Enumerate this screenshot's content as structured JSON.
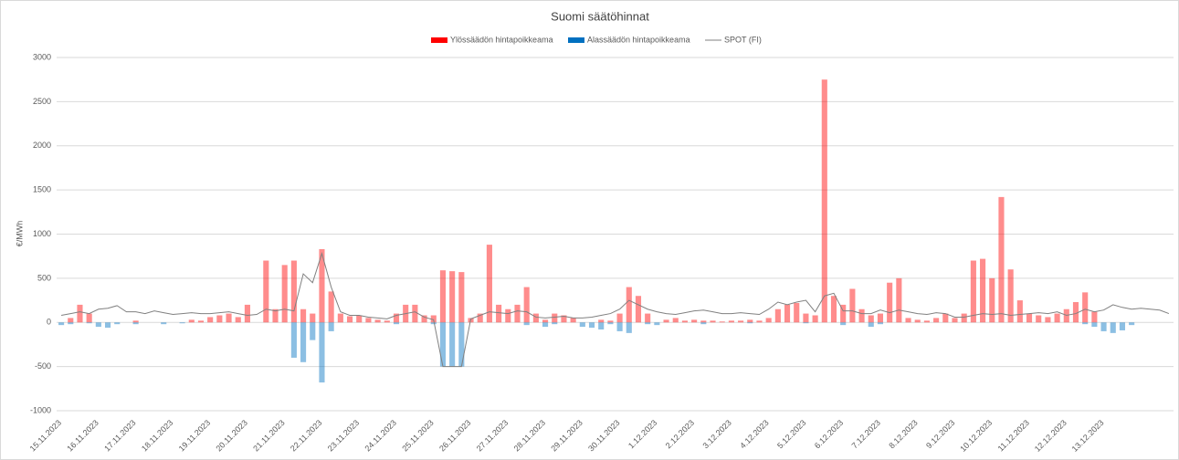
{
  "chart_data": {
    "type": "bar",
    "title": "Suomi säätöhinnat",
    "y_label": "€/MWh",
    "categories": [
      "15.11.2023",
      null,
      null,
      null,
      "16.11.2023",
      null,
      null,
      null,
      "17.11.2023",
      null,
      null,
      null,
      "18.11.2023",
      null,
      null,
      null,
      "19.11.2023",
      null,
      null,
      null,
      "20.11.2023",
      null,
      null,
      null,
      "21.11.2023",
      null,
      null,
      null,
      "22.11.2023",
      null,
      null,
      null,
      "23.11.2023",
      null,
      null,
      null,
      "24.11.2023",
      null,
      null,
      null,
      "25.11.2023",
      null,
      null,
      null,
      "26.11.2023",
      null,
      null,
      null,
      "27.11.2023",
      null,
      null,
      null,
      "28.11.2023",
      null,
      null,
      null,
      "29.11.2023",
      null,
      null,
      null,
      "30.11.2023",
      null,
      null,
      null,
      "1.12.2023",
      null,
      null,
      null,
      "2.12.2023",
      null,
      null,
      null,
      "3.12.2023",
      null,
      null,
      null,
      "4.12.2023",
      null,
      null,
      null,
      "5.12.2023",
      null,
      null,
      null,
      "6.12.2023",
      null,
      null,
      null,
      "7.12.2023",
      null,
      null,
      null,
      "8.12.2023",
      null,
      null,
      null,
      "9.12.2023",
      null,
      null,
      null,
      "10.12.2023",
      null,
      null,
      null,
      "11.12.2023",
      null,
      null,
      null,
      "12.12.2023",
      null,
      null,
      null,
      "13.12.2023",
      null,
      null,
      null,
      null,
      null,
      null,
      null
    ],
    "series": [
      {
        "name": "Ylössäädön hintapoikkeama",
        "type": "bar",
        "color": "#ff0000",
        "values": [
          0,
          50,
          200,
          100,
          0,
          0,
          0,
          0,
          20,
          0,
          0,
          0,
          0,
          0,
          30,
          20,
          60,
          80,
          100,
          60,
          200,
          0,
          700,
          150,
          650,
          700,
          150,
          100,
          830,
          350,
          100,
          70,
          80,
          50,
          30,
          20,
          100,
          200,
          200,
          80,
          80,
          590,
          580,
          570,
          50,
          100,
          880,
          200,
          150,
          200,
          400,
          100,
          30,
          100,
          80,
          50,
          0,
          0,
          30,
          20,
          100,
          400,
          300,
          100,
          0,
          30,
          50,
          20,
          30,
          20,
          20,
          10,
          20,
          20,
          30,
          20,
          50,
          150,
          200,
          220,
          100,
          80,
          2750,
          300,
          200,
          380,
          150,
          80,
          100,
          450,
          500,
          50,
          30,
          20,
          50,
          100,
          50,
          100,
          700,
          720,
          500,
          1420,
          600,
          250,
          100,
          80,
          60,
          100,
          150,
          230,
          340,
          120,
          0,
          0,
          0,
          0,
          0,
          0,
          0,
          0
        ]
      },
      {
        "name": "Alassäädön hintapoikkeama",
        "type": "bar",
        "color": "#0070c0",
        "values": [
          -30,
          -20,
          0,
          -10,
          -50,
          -60,
          -20,
          0,
          -20,
          0,
          0,
          -20,
          0,
          -10,
          0,
          0,
          0,
          0,
          0,
          0,
          0,
          0,
          0,
          0,
          0,
          -400,
          -450,
          -200,
          -680,
          -100,
          0,
          0,
          0,
          0,
          0,
          0,
          -20,
          0,
          0,
          0,
          -20,
          -500,
          -500,
          -500,
          0,
          0,
          0,
          0,
          0,
          0,
          -30,
          0,
          -50,
          -20,
          0,
          0,
          -50,
          -60,
          -80,
          -20,
          -100,
          -120,
          0,
          -20,
          -30,
          0,
          0,
          0,
          0,
          -20,
          0,
          0,
          0,
          0,
          -10,
          0,
          0,
          0,
          0,
          0,
          -10,
          0,
          0,
          0,
          -30,
          0,
          0,
          -50,
          -20,
          0,
          0,
          0,
          0,
          0,
          0,
          0,
          0,
          0,
          0,
          0,
          0,
          0,
          0,
          0,
          0,
          0,
          0,
          0,
          0,
          0,
          -20,
          -50,
          -100,
          -120,
          -90,
          -30,
          0,
          0,
          0,
          0
        ]
      },
      {
        "name": "SPOT (FI)",
        "type": "line",
        "color": "#808080",
        "values": [
          80,
          100,
          120,
          100,
          150,
          160,
          190,
          120,
          120,
          100,
          130,
          110,
          90,
          100,
          110,
          100,
          100,
          110,
          120,
          100,
          80,
          90,
          150,
          130,
          150,
          130,
          550,
          450,
          780,
          400,
          120,
          80,
          80,
          60,
          50,
          40,
          80,
          100,
          120,
          60,
          30,
          -500,
          -500,
          -500,
          40,
          80,
          120,
          110,
          100,
          130,
          120,
          60,
          50,
          60,
          70,
          50,
          50,
          60,
          80,
          100,
          150,
          250,
          200,
          150,
          120,
          100,
          90,
          110,
          130,
          140,
          120,
          100,
          100,
          110,
          100,
          90,
          150,
          230,
          200,
          230,
          250,
          120,
          300,
          330,
          130,
          130,
          100,
          100,
          140,
          110,
          140,
          120,
          100,
          90,
          110,
          100,
          60,
          60,
          80,
          100,
          90,
          100,
          80,
          90,
          100,
          110,
          100,
          120,
          80,
          100,
          150,
          120,
          140,
          200,
          170,
          150,
          160,
          150,
          140,
          100
        ]
      }
    ],
    "ylim": [
      -1000,
      3000
    ],
    "yticks": [
      -1000,
      -500,
      0,
      500,
      1000,
      1500,
      2000,
      2500,
      3000
    ],
    "grid": true
  }
}
